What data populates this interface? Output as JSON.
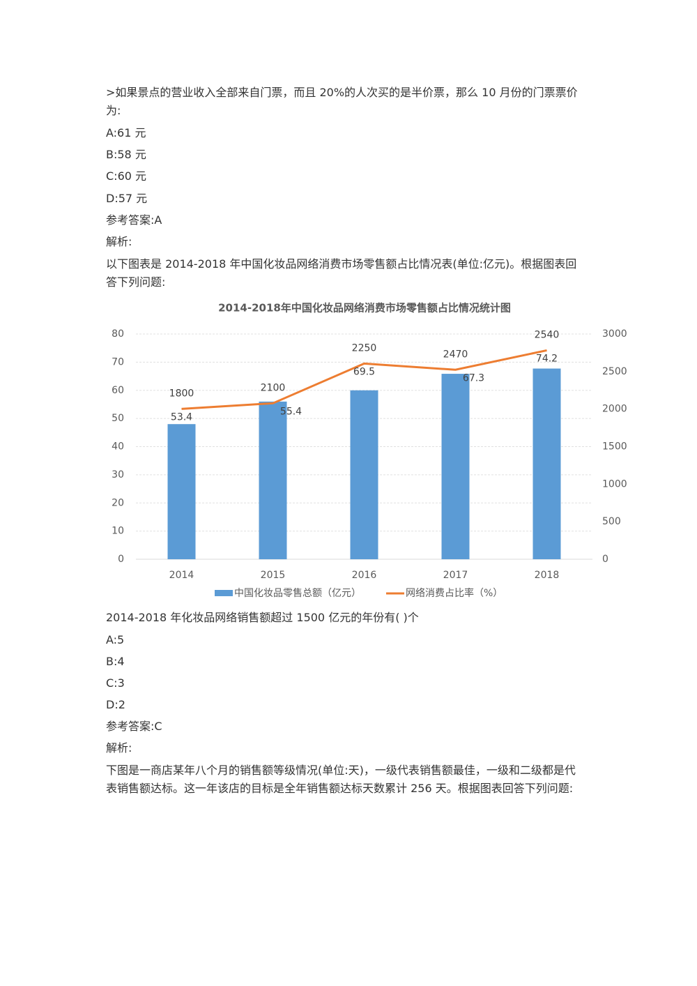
{
  "question1": {
    "stem": ">如果景点的营业收入全部来自门票，而且 20%的人次买的是半价票，那么 10 月份的门票票价为:",
    "options": [
      "A:61 元",
      "B:58 元",
      "C:60 元",
      "D:57 元"
    ],
    "answer": "参考答案:A",
    "analysis": "解析:"
  },
  "intro2": "以下图表是 2014-2018 年中国化妆品网络消费市场零售额占比情况表(单位:亿元)。根据图表回答下列问题:",
  "chart_data": {
    "type": "bar",
    "title": "2014-2018年中国化妆品网络消费市场零售额占比情况统计图",
    "categories": [
      "2014",
      "2015",
      "2016",
      "2017",
      "2018"
    ],
    "series": [
      {
        "name": "中国化妆品零售总额（亿元）",
        "type": "bar",
        "axis": "y2",
        "color": "#5b9bd5",
        "values": [
          1800,
          2100,
          2250,
          2470,
          2540
        ]
      },
      {
        "name": "网络消费占比率（%）",
        "type": "line",
        "color": "#ed7d31",
        "values": [
          53.4,
          55.4,
          69.5,
          67.3,
          74.2
        ]
      }
    ],
    "ylim": [
      0,
      80
    ],
    "yticks": [
      0,
      10,
      20,
      30,
      40,
      50,
      60,
      70,
      80
    ],
    "y2lim": [
      0,
      3000
    ],
    "y2ticks": [
      0,
      500,
      1000,
      1500,
      2000,
      2500,
      3000
    ],
    "grid": true,
    "legend": "bottom"
  },
  "question2": {
    "stem": "2014-2018 年化妆品网络销售额超过 1500 亿元的年份有( )个",
    "options": [
      "A:5",
      "B:4",
      "C:3",
      "D:2"
    ],
    "answer": "参考答案:C",
    "analysis": "解析:"
  },
  "intro3": "下图是一商店某年八个月的销售额等级情况(单位:天)，一级代表销售额最佳，一级和二级都是代表销售额达标。这一年该店的目标是全年销售额达标天数累计 256 天。根据图表回答下列问题:"
}
